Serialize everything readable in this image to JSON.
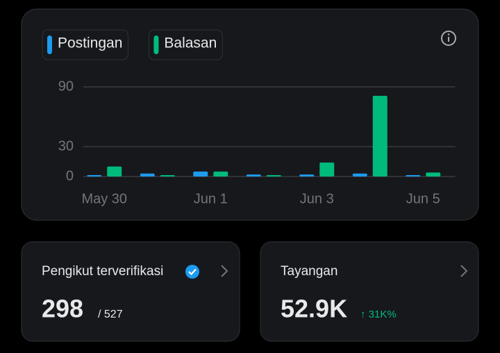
{
  "chart_data": {
    "type": "bar",
    "categories": [
      "May 30",
      null,
      "Jun 1",
      null,
      "Jun 3",
      null,
      "Jun 5"
    ],
    "series": [
      {
        "name": "Postingan",
        "color": "#1d9bf0",
        "values": [
          1,
          3,
          5,
          2,
          2,
          3,
          1
        ]
      },
      {
        "name": "Balasan",
        "color": "#00ba7c",
        "values": [
          10,
          0,
          5,
          1,
          14,
          81,
          4
        ]
      }
    ],
    "ylim": [
      0,
      90
    ],
    "yticks": [
      0,
      30,
      90
    ],
    "grid": true
  },
  "cards": [
    {
      "title": "Pengikut terverifikasi",
      "value": "298",
      "total": "/ 527"
    },
    {
      "title": "Tayangan",
      "value": "52.9K",
      "change": "↑ 31K%"
    }
  ]
}
